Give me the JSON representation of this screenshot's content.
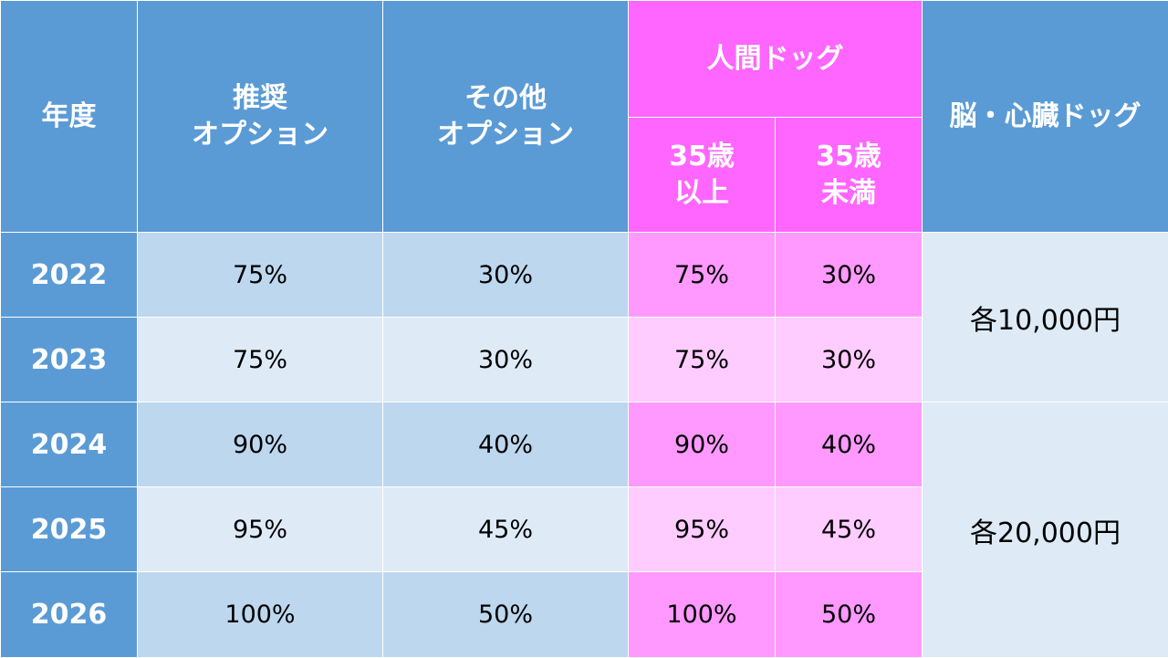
{
  "headers": {
    "year": "年度",
    "recommended": [
      "推奨",
      "オプション"
    ],
    "other": [
      "その他",
      "オプション"
    ],
    "human_dock": "人間ドッグ",
    "age_35_over": [
      "35歳",
      "以上"
    ],
    "age_35_under": [
      "35歳",
      "未満"
    ],
    "brain_heart": "脳・心臓ドッグ"
  },
  "rows": [
    {
      "year": "2022",
      "recommended": "75%",
      "other": "30%",
      "over35": "75%",
      "under35": "30%"
    },
    {
      "year": "2023",
      "recommended": "75%",
      "other": "30%",
      "over35": "75%",
      "under35": "30%"
    },
    {
      "year": "2024",
      "recommended": "90%",
      "other": "40%",
      "over35": "90%",
      "under35": "40%"
    },
    {
      "year": "2025",
      "recommended": "95%",
      "other": "45%",
      "over35": "95%",
      "under35": "45%"
    },
    {
      "year": "2026",
      "recommended": "100%",
      "other": "50%",
      "over35": "100%",
      "under35": "50%"
    }
  ],
  "brain_heart_values": [
    "各10,000円",
    "各20,000円"
  ],
  "colors": {
    "header_blue": "#5b9bd5",
    "header_pink": "#ff66ff",
    "row_blue_dark": "#bdd7ee",
    "row_blue_light": "#deebf7",
    "row_pink_dark": "#ff99ff",
    "row_pink_light": "#ffccff"
  }
}
